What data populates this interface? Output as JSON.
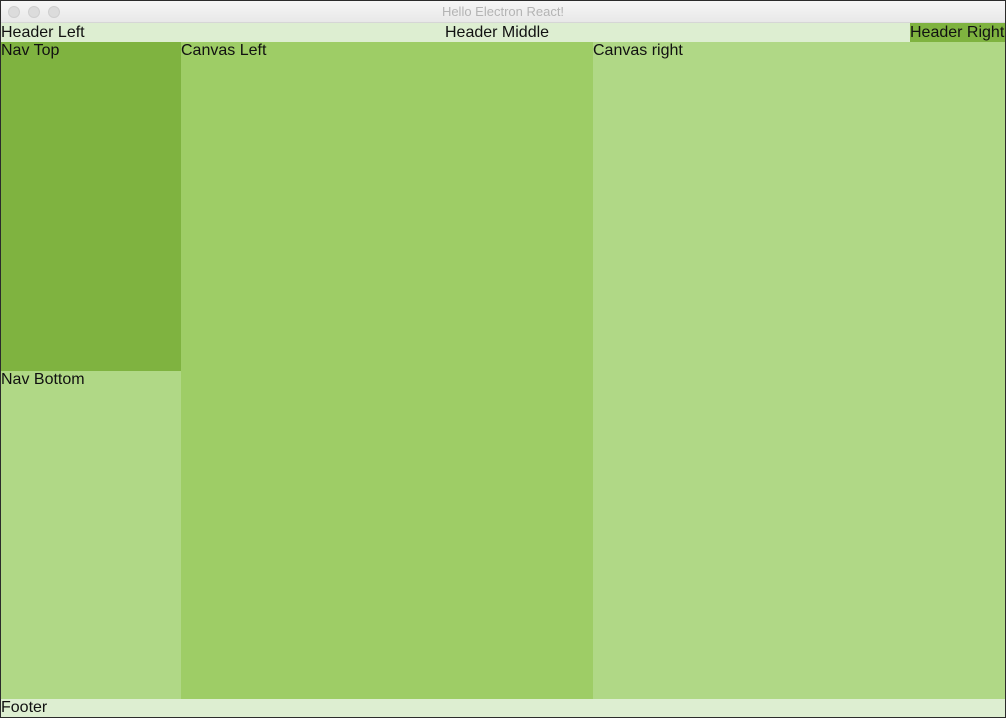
{
  "window": {
    "title": "Hello Electron React!"
  },
  "header": {
    "left": "Header Left",
    "middle": "Header Middle",
    "right": "Header Right"
  },
  "nav": {
    "top": "Nav Top",
    "bottom": "Nav Bottom"
  },
  "canvas": {
    "left": "Canvas Left",
    "right": "Canvas right"
  },
  "footer": {
    "label": "Footer"
  },
  "colors": {
    "light_green": "#ddeed1",
    "dark_green": "#7fb340",
    "mid_green": "#9ecd66",
    "soft_green": "#b0d886"
  }
}
